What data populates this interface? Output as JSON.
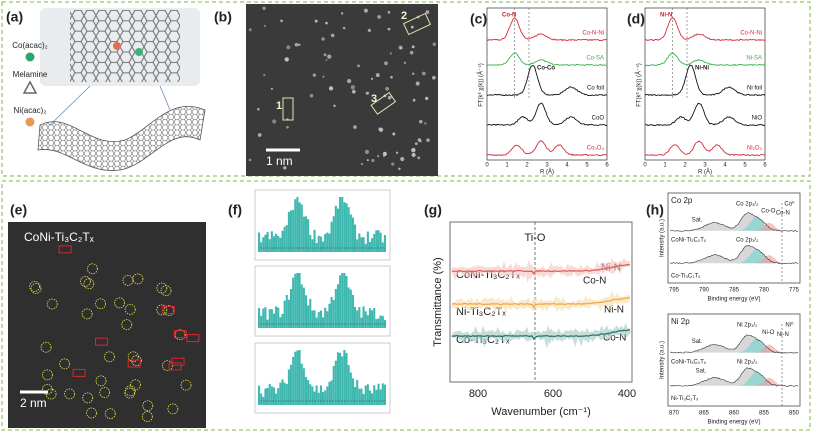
{
  "a": {
    "label": "(a)",
    "legend": [
      "Co(acac)₂",
      "Melamine",
      "Ni(acac)₂"
    ]
  },
  "b": {
    "label": "(b)",
    "regions": [
      "1",
      "2",
      "3"
    ],
    "scale": "1 nm"
  },
  "c": {
    "label": "(c)",
    "y_label": "FT(k³ χ(k)) (Å⁻⁴)",
    "x_label": "R (Å)",
    "x_ticks": [
      "0",
      "1",
      "2",
      "3",
      "4",
      "5",
      "6"
    ],
    "peaks": [
      "Co-N",
      "Co-Co"
    ],
    "traces": [
      "Co-N-Ni",
      "Co-SA",
      "Co foil",
      "CoO",
      "Co₃O₄"
    ]
  },
  "d": {
    "label": "(d)",
    "y_label": "FT(k³ χ(k)) (Å⁻⁴)",
    "x_label": "R (Å)",
    "x_ticks": [
      "0",
      "1",
      "2",
      "3",
      "4",
      "5",
      "6"
    ],
    "peaks": [
      "Ni-N",
      "Ni-Ni"
    ],
    "traces": [
      "Co-N-Ni",
      "Ni-SA",
      "Ni foil",
      "NiO",
      "Ni₂O₃"
    ]
  },
  "e": {
    "label": "(e)",
    "sample": "CoNi-Ti₃C₂Tₓ",
    "scale": "2 nm"
  },
  "f": {
    "label": "(f)"
  },
  "g": {
    "label": "(g)",
    "y_label": "Transmittance (%)",
    "x_label": "Wavenumber (cm⁻¹)",
    "x_ticks": [
      "800",
      "600",
      "400"
    ],
    "band": "Ti-O",
    "samples": [
      "CoNi-Ti₃C₂Tₓ",
      "Ni-Ti₃C₂Tₓ",
      "Co-Ti₃C₂Tₓ"
    ],
    "peaks": [
      "Ni-N",
      "Co-N",
      "Ni-N",
      "Co-N"
    ]
  },
  "h": {
    "label": "(h)",
    "top": {
      "title": "Co 2p",
      "peaks": [
        "Co 2p₃/₂",
        "Co-O",
        "Co-N",
        "Sat.",
        "Co⁰",
        "Co 2p₃/₂"
      ],
      "samples": [
        "CoNi-Ti₃C₂Tₓ",
        "Co-Ti₃C₂Tₓ"
      ],
      "x_ticks": [
        "795",
        "790",
        "785",
        "780",
        "775"
      ],
      "x_label": "Binding energy (eV)",
      "y_label": "Intensity (a.u.)"
    },
    "bottom": {
      "title": "Ni 2p",
      "peaks": [
        "Ni 2p₃/₂",
        "Ni-O",
        "Ni-N",
        "Sat.",
        "Ni⁰",
        "Ni 2p₃/₂",
        "Sat."
      ],
      "samples": [
        "CoNi-Ti₃C₂Tₓ",
        "Ni-Ti₃C₂Tₓ"
      ],
      "x_ticks": [
        "870",
        "865",
        "860",
        "855",
        "850"
      ],
      "x_label": "Binding energy (eV)",
      "y_label": "Intensity (a.u.)"
    }
  }
}
